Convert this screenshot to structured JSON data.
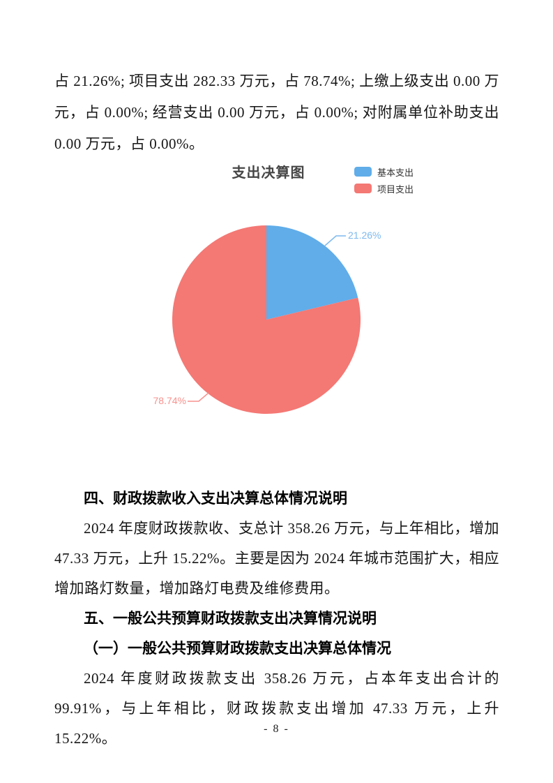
{
  "page": {
    "number_label": "- 8 -"
  },
  "paragraph_continuation": "占 21.26%; 项目支出 282.33 万元，占 78.74%; 上缴上级支出 0.00 万元，占 0.00%; 经营支出 0.00 万元，占 0.00%; 对附属单位补助支出 0.00 万元，占 0.00%。",
  "sections": [
    {
      "heading": "四、财政拨款收入支出决算总体情况说明",
      "paragraphs": [
        "2024 年度财政拨款收、支总计 358.26 万元，与上年相比，增加 47.33 万元，上升 15.22%。主要是因为 2024 年城市范围扩大，相应增加路灯数量，增加路灯电费及维修费用。"
      ]
    },
    {
      "heading": "五、一般公共预算财政拨款支出决算情况说明",
      "subheading": "（一）一般公共预算财政拨款支出决算总体情况",
      "paragraphs": [
        "2024 年度财政拨款支出 358.26 万元，占本年支出合计的 99.91%，与上年相比，财政拨款支出增加 47.33 万元，上升 15.22%。"
      ]
    }
  ],
  "chart_data": {
    "type": "pie",
    "title": "支出决算图",
    "legend_position": "top-right",
    "start_angle": "top",
    "direction": "clockwise",
    "unit": "%",
    "slices": [
      {
        "name": "基本支出",
        "value": 21.26,
        "label": "21.26%",
        "color": "#60ADE9",
        "label_color": "#7DB9EE"
      },
      {
        "name": "项目支出",
        "value": 78.74,
        "label": "78.74%",
        "color": "#F47874",
        "label_color": "#F7928E"
      }
    ]
  }
}
